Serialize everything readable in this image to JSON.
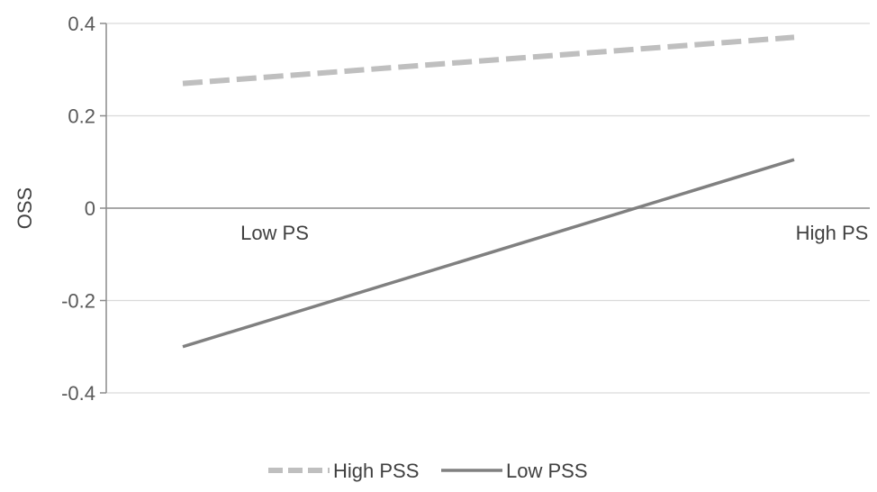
{
  "chart_data": {
    "type": "line",
    "title": "",
    "xlabel": "",
    "ylabel": "OSS",
    "categories": [
      "Low PS",
      "High PS"
    ],
    "ylim": [
      -0.4,
      0.4
    ],
    "yticks": [
      0.4,
      0.2,
      0,
      -0.2,
      -0.4
    ],
    "ytick_labels": [
      "0.4",
      "0.2",
      "0",
      "-0.2",
      "-0.4"
    ],
    "grid": true,
    "legend_position": "bottom",
    "series": [
      {
        "name": "High PSS",
        "values": [
          0.27,
          0.37
        ],
        "color": "#bfbfbf",
        "style": "dashed"
      },
      {
        "name": "Low PSS",
        "values": [
          -0.3,
          0.105
        ],
        "color": "#808080",
        "style": "solid"
      }
    ]
  }
}
